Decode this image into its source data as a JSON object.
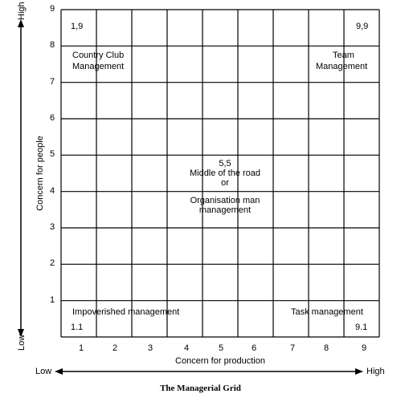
{
  "grid": {
    "x_ticks": [
      "1",
      "2",
      "3",
      "4",
      "5",
      "6",
      "7",
      "8",
      "9"
    ],
    "y_ticks": [
      "1",
      "2",
      "3",
      "4",
      "5",
      "6",
      "7",
      "8",
      "9"
    ],
    "x_axis_label": "Concern for production",
    "y_axis_label": "Concern for people",
    "x_low": "Low",
    "x_high": "High",
    "y_low": "Low",
    "y_high": "High"
  },
  "styles": {
    "top_left": {
      "coord": "1,9",
      "line1": "Country Club",
      "line2": "Management"
    },
    "top_right": {
      "coord": "9,9",
      "line1": "Team",
      "line2": "Management"
    },
    "center": {
      "coord": "5,5",
      "line1": "Middle of the road",
      "line2": "or",
      "line3": "Organisation man",
      "line4": "management"
    },
    "bottom_left": {
      "label": "Impoverished management",
      "coord": "1.1"
    },
    "bottom_right": {
      "label": "Task management",
      "coord": "9.1"
    }
  },
  "caption": "The Managerial Grid"
}
